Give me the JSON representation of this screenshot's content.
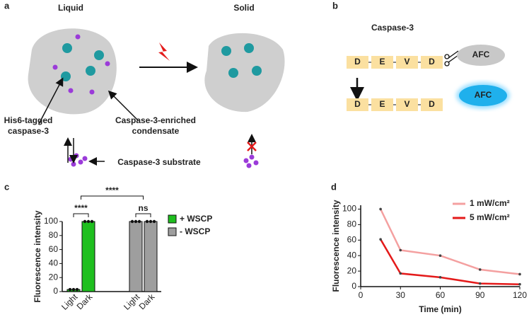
{
  "panels": {
    "a": {
      "label": "a",
      "liquid": "Liquid",
      "solid": "Solid",
      "his1": "His6-tagged",
      "his2": "caspase-3",
      "cond1": "Caspase-3-enriched",
      "cond2": "condensate",
      "substrate": "Caspase-3 substrate"
    },
    "b": {
      "label": "b",
      "title": "Caspase-3",
      "residues": [
        "D",
        "E",
        "V",
        "D"
      ],
      "afc": "AFC"
    }
  },
  "chart_data": [
    {
      "type": "bar",
      "panel": "c",
      "ylabel": "Fluorescence intensity",
      "categories": [
        "Light",
        "Dark"
      ],
      "series": [
        {
          "name": "+ WSCP",
          "color": "#1fbf1f",
          "values": [
            3,
            100
          ],
          "points": [
            [
              3,
              3,
              3
            ],
            [
              100,
              100,
              100
            ]
          ]
        },
        {
          "name": "- WSCP",
          "color": "#9e9e9e",
          "values": [
            100,
            100
          ],
          "points": [
            [
              100,
              100,
              100
            ],
            [
              100,
              100,
              100
            ]
          ]
        }
      ],
      "ylim": [
        0,
        100
      ],
      "yticks": [
        0,
        20,
        40,
        60,
        80,
        100
      ],
      "annotations": [
        "****",
        "****",
        "ns"
      ]
    },
    {
      "type": "line",
      "panel": "d",
      "xlabel": "Time (min)",
      "ylabel": "Fluorescence intensity",
      "x": [
        15,
        30,
        60,
        90,
        120
      ],
      "series": [
        {
          "name": "1 mW/cm²",
          "color": "#f4a0a0",
          "values": [
            100,
            47,
            40,
            22,
            16
          ]
        },
        {
          "name": "5 mW/cm²",
          "color": "#e41a1a",
          "values": [
            61,
            17,
            12,
            4,
            3
          ]
        }
      ],
      "xlim": [
        0,
        120
      ],
      "ylim": [
        0,
        105
      ],
      "xticks": [
        0,
        30,
        60,
        90,
        120
      ],
      "yticks": [
        0,
        20,
        40,
        60,
        80,
        100
      ],
      "legend": "upper right"
    }
  ]
}
